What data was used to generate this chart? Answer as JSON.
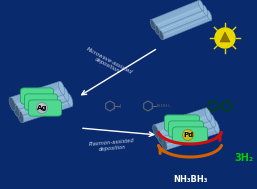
{
  "bg_color": "#0a2a6e",
  "title_bottom": "NH₃BH₃",
  "label_3h2": "3H₂",
  "label_ag": "Ag",
  "label_pd": "Pd",
  "text_microwave": "Microwave-assisted\ndeposition",
  "text_plasmon": "Plasmon-assisted\ndeposition",
  "tube_outer": "#6080a8",
  "tube_inner": "#90b8d8",
  "tube_highlight": "#b0d0e8",
  "tube_shadow": "#405870",
  "capsule_color": "#50d890",
  "capsule_edge": "#20a060",
  "ag_color": "#b0b8c0",
  "ag_edge": "#808890",
  "pd_color": "#c8b820",
  "pd_edge": "#907800",
  "arrow_red": "#cc1010",
  "arrow_orange": "#d06000",
  "arrow_white": "#ffffff",
  "arrow_gray": "#c0c8d0",
  "bulb_yellow": "#e8d800",
  "bulb_ray": "#e8d800",
  "benzene_gray": "#606870",
  "biphenyl_green": "#004400",
  "text_white": "#ffffff",
  "text_green": "#00cc00",
  "text_italic_color": "#d0d8e8"
}
